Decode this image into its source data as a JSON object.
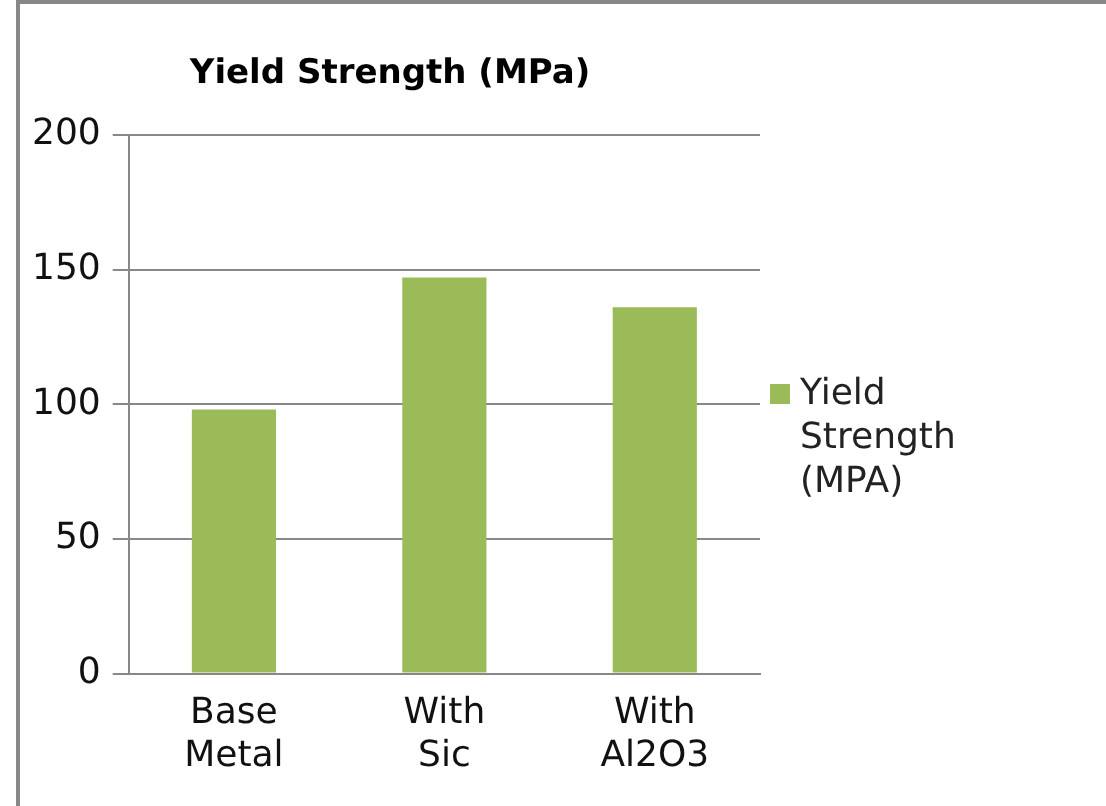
{
  "chart_data": {
    "type": "bar",
    "title": "Yield Strength (MPa)",
    "categories": [
      "Base Metal",
      "With Sic",
      "With Al2O3"
    ],
    "series": [
      {
        "name": "Yield Strength (MPA)",
        "color": "#9bbb59",
        "values": [
          98,
          147,
          136
        ]
      }
    ],
    "ylim": [
      0,
      200
    ],
    "yticks": [
      0,
      50,
      100,
      150,
      200
    ],
    "grid": "y",
    "legend": "right"
  }
}
